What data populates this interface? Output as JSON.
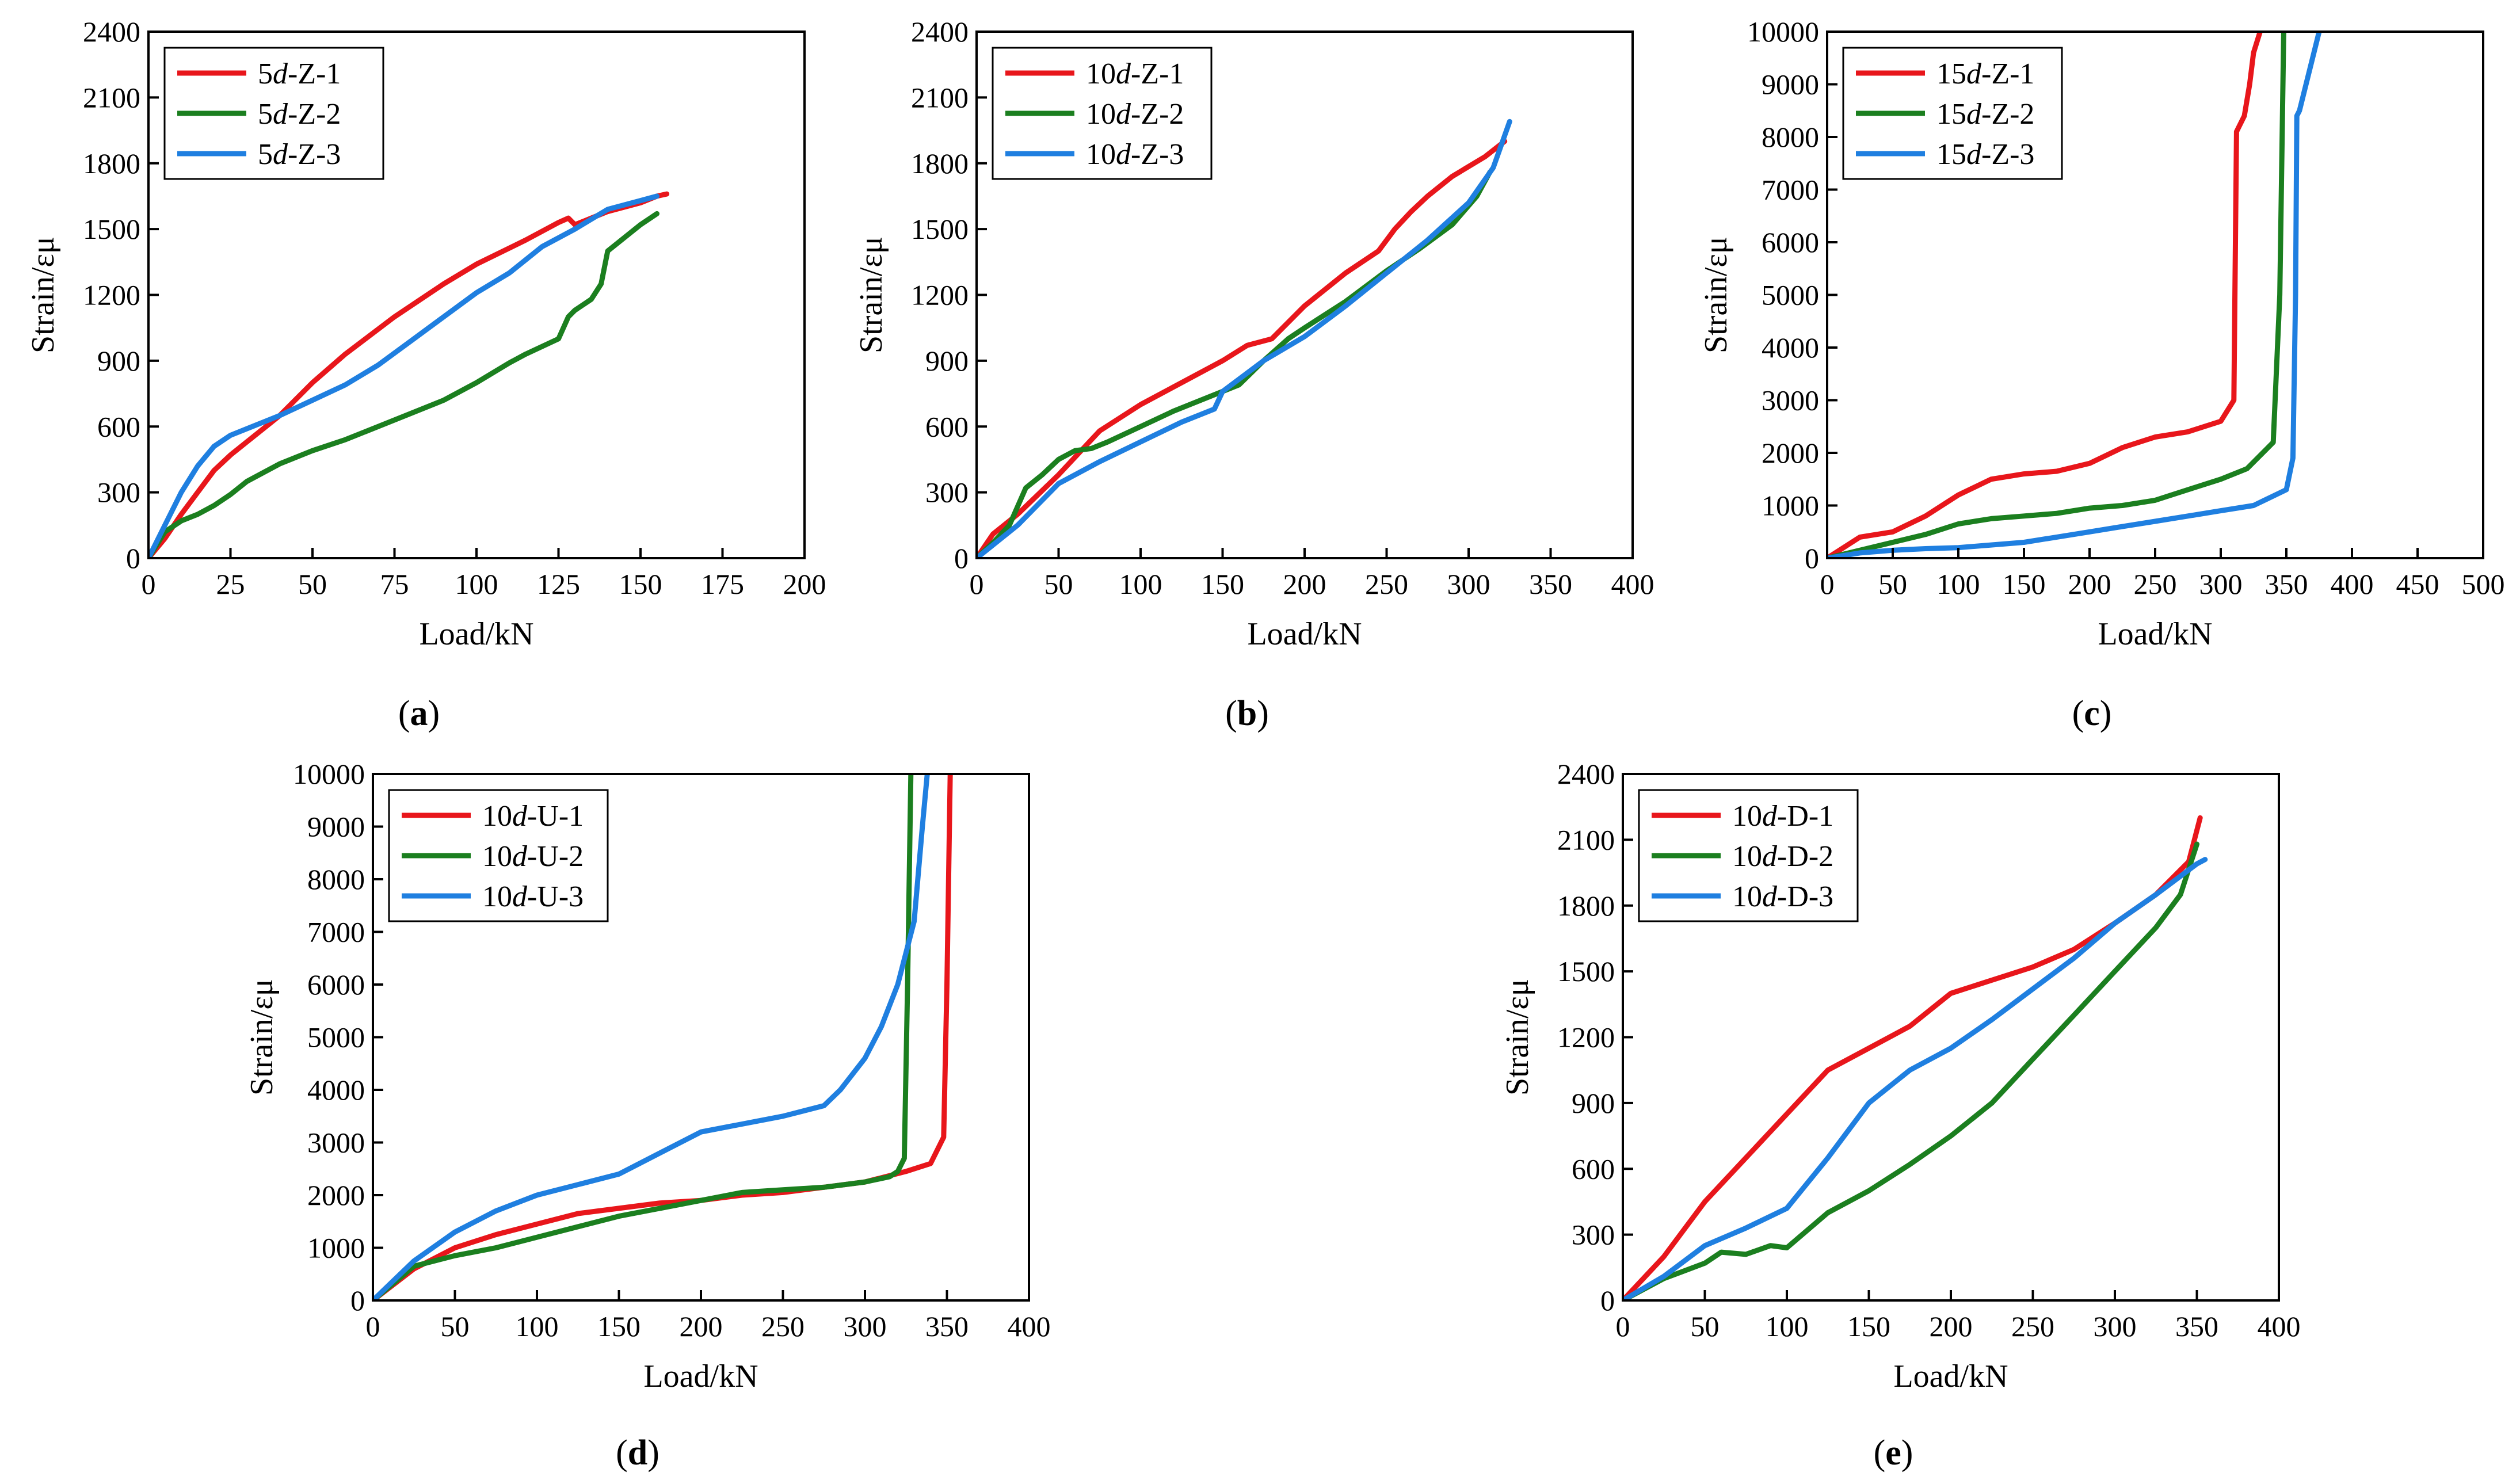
{
  "figure": {
    "panels": [
      "a",
      "b",
      "c",
      "d",
      "e"
    ]
  },
  "chart_data": [
    {
      "id": "a",
      "type": "line",
      "sublabel": "a",
      "xlabel": "Load/kN",
      "ylabel": "Strain/εμ",
      "xlim": [
        0,
        200
      ],
      "ylim": [
        0,
        2400
      ],
      "xticks": [
        0,
        25,
        50,
        75,
        100,
        125,
        150,
        175,
        200
      ],
      "yticks": [
        0,
        300,
        600,
        900,
        1200,
        1500,
        1800,
        2100,
        2400
      ],
      "legend_position": "top-left",
      "series": [
        {
          "name": "5d-Z-1",
          "prefix": "5",
          "ital": "d",
          "suffix": "-Z-1",
          "color": "#e8161b",
          "x": [
            0,
            5,
            10,
            15,
            20,
            25,
            30,
            40,
            50,
            60,
            75,
            90,
            100,
            115,
            125,
            128,
            130,
            135,
            140,
            145,
            150,
            155,
            158
          ],
          "y": [
            0,
            90,
            200,
            300,
            400,
            470,
            530,
            650,
            800,
            930,
            1100,
            1250,
            1340,
            1450,
            1530,
            1550,
            1520,
            1550,
            1580,
            1600,
            1620,
            1650,
            1660
          ]
        },
        {
          "name": "5d-Z-2",
          "prefix": "5",
          "ital": "d",
          "suffix": "-Z-2",
          "color": "#1b7f1f",
          "x": [
            0,
            5,
            10,
            15,
            20,
            25,
            30,
            40,
            50,
            60,
            70,
            80,
            90,
            100,
            110,
            115,
            125,
            128,
            130,
            135,
            138,
            140,
            145,
            150,
            155
          ],
          "y": [
            0,
            120,
            170,
            200,
            240,
            290,
            350,
            430,
            490,
            540,
            600,
            660,
            720,
            800,
            890,
            930,
            1000,
            1100,
            1130,
            1180,
            1250,
            1400,
            1460,
            1520,
            1570
          ]
        },
        {
          "name": "5d-Z-3",
          "prefix": "5",
          "ital": "d",
          "suffix": "-Z-3",
          "color": "#1f7fe0",
          "x": [
            0,
            5,
            10,
            15,
            20,
            25,
            30,
            40,
            50,
            60,
            70,
            80,
            90,
            100,
            110,
            120,
            130,
            140,
            150,
            155
          ],
          "y": [
            0,
            150,
            300,
            420,
            510,
            560,
            590,
            650,
            720,
            790,
            880,
            990,
            1100,
            1210,
            1300,
            1420,
            1500,
            1590,
            1630,
            1650
          ]
        }
      ]
    },
    {
      "id": "b",
      "type": "line",
      "sublabel": "b",
      "xlabel": "Load/kN",
      "ylabel": "Strain/εμ",
      "xlim": [
        0,
        400
      ],
      "ylim": [
        0,
        2400
      ],
      "xticks": [
        0,
        50,
        100,
        150,
        200,
        250,
        300,
        350,
        400
      ],
      "yticks": [
        0,
        300,
        600,
        900,
        1200,
        1500,
        1800,
        2100,
        2400
      ],
      "legend_position": "top-left",
      "series": [
        {
          "name": "10d-Z-1",
          "prefix": "10",
          "ital": "d",
          "suffix": "-Z-1",
          "color": "#e8161b",
          "x": [
            0,
            10,
            25,
            50,
            75,
            100,
            125,
            150,
            165,
            180,
            200,
            225,
            245,
            255,
            265,
            275,
            290,
            310,
            322
          ],
          "y": [
            0,
            110,
            200,
            380,
            580,
            700,
            800,
            900,
            970,
            1000,
            1150,
            1300,
            1400,
            1500,
            1580,
            1650,
            1740,
            1830,
            1900
          ]
        },
        {
          "name": "10d-Z-2",
          "prefix": "10",
          "ital": "d",
          "suffix": "-Z-2",
          "color": "#1b7f1f",
          "x": [
            0,
            10,
            20,
            30,
            40,
            50,
            60,
            70,
            80,
            100,
            120,
            140,
            160,
            175,
            190,
            200,
            225,
            250,
            270,
            290,
            305,
            313
          ],
          "y": [
            0,
            70,
            150,
            320,
            380,
            450,
            490,
            500,
            530,
            600,
            670,
            730,
            790,
            900,
            1000,
            1050,
            1170,
            1310,
            1410,
            1520,
            1650,
            1760
          ]
        },
        {
          "name": "10d-Z-3",
          "prefix": "10",
          "ital": "d",
          "suffix": "-Z-3",
          "color": "#1f7fe0",
          "x": [
            0,
            10,
            25,
            50,
            75,
            100,
            125,
            145,
            150,
            175,
            200,
            225,
            250,
            275,
            300,
            315,
            325
          ],
          "y": [
            0,
            60,
            150,
            340,
            440,
            530,
            620,
            680,
            760,
            900,
            1010,
            1150,
            1300,
            1450,
            1620,
            1780,
            1990
          ]
        }
      ]
    },
    {
      "id": "c",
      "type": "line",
      "sublabel": "c",
      "xlabel": "Load/kN",
      "ylabel": "Strain/εμ",
      "xlim": [
        0,
        500
      ],
      "ylim": [
        0,
        10000
      ],
      "xticks": [
        0,
        50,
        100,
        150,
        200,
        250,
        300,
        350,
        400,
        450,
        500
      ],
      "yticks": [
        0,
        1000,
        2000,
        3000,
        4000,
        5000,
        6000,
        7000,
        8000,
        9000,
        10000
      ],
      "legend_position": "top-left",
      "series": [
        {
          "name": "15d-Z-1",
          "prefix": "15",
          "ital": "d",
          "suffix": "-Z-1",
          "color": "#e8161b",
          "x": [
            0,
            25,
            50,
            75,
            100,
            125,
            150,
            175,
            200,
            225,
            250,
            275,
            300,
            310,
            312,
            318,
            322,
            325,
            330
          ],
          "y": [
            0,
            400,
            500,
            800,
            1200,
            1500,
            1600,
            1650,
            1800,
            2100,
            2300,
            2400,
            2600,
            3000,
            8100,
            8400,
            9000,
            9600,
            10000
          ]
        },
        {
          "name": "15d-Z-2",
          "prefix": "15",
          "ital": "d",
          "suffix": "-Z-2",
          "color": "#1b7f1f",
          "x": [
            0,
            25,
            50,
            75,
            100,
            125,
            150,
            175,
            200,
            225,
            250,
            275,
            300,
            320,
            340,
            345,
            348
          ],
          "y": [
            0,
            150,
            300,
            450,
            650,
            750,
            800,
            850,
            950,
            1000,
            1100,
            1300,
            1500,
            1700,
            2200,
            5000,
            10000
          ]
        },
        {
          "name": "15d-Z-3",
          "prefix": "15",
          "ital": "d",
          "suffix": "-Z-3",
          "color": "#1f7fe0",
          "x": [
            0,
            25,
            50,
            75,
            100,
            125,
            150,
            175,
            200,
            225,
            250,
            275,
            300,
            325,
            350,
            355,
            357,
            358,
            360,
            365,
            370,
            375
          ],
          "y": [
            0,
            100,
            150,
            180,
            200,
            250,
            300,
            400,
            500,
            600,
            700,
            800,
            900,
            1000,
            1300,
            1900,
            5000,
            8400,
            8500,
            9000,
            9500,
            10000
          ]
        }
      ]
    },
    {
      "id": "d",
      "type": "line",
      "sublabel": "d",
      "xlabel": "Load/kN",
      "ylabel": "Strain/εμ",
      "xlim": [
        0,
        400
      ],
      "ylim": [
        0,
        10000
      ],
      "xticks": [
        0,
        50,
        100,
        150,
        200,
        250,
        300,
        350,
        400
      ],
      "yticks": [
        0,
        1000,
        2000,
        3000,
        4000,
        5000,
        6000,
        7000,
        8000,
        9000,
        10000
      ],
      "legend_position": "top-left",
      "series": [
        {
          "name": "10d-U-1",
          "prefix": "10",
          "ital": "d",
          "suffix": "-U-1",
          "color": "#e8161b",
          "x": [
            0,
            25,
            50,
            75,
            100,
            125,
            150,
            175,
            200,
            225,
            250,
            275,
            300,
            325,
            340,
            348,
            350,
            352
          ],
          "y": [
            0,
            600,
            1000,
            1250,
            1450,
            1650,
            1750,
            1850,
            1900,
            2000,
            2050,
            2150,
            2250,
            2450,
            2600,
            3100,
            6000,
            10000
          ]
        },
        {
          "name": "10d-U-2",
          "prefix": "10",
          "ital": "d",
          "suffix": "-U-2",
          "color": "#1b7f1f",
          "x": [
            0,
            25,
            50,
            75,
            100,
            125,
            150,
            175,
            200,
            225,
            250,
            275,
            300,
            315,
            320,
            324,
            326,
            328
          ],
          "y": [
            0,
            650,
            850,
            1000,
            1200,
            1400,
            1600,
            1750,
            1900,
            2050,
            2100,
            2150,
            2250,
            2350,
            2450,
            2700,
            6000,
            10000
          ]
        },
        {
          "name": "10d-U-3",
          "prefix": "10",
          "ital": "d",
          "suffix": "-U-3",
          "color": "#1f7fe0",
          "x": [
            0,
            25,
            50,
            75,
            100,
            125,
            150,
            175,
            200,
            225,
            250,
            275,
            285,
            300,
            310,
            320,
            330,
            335,
            338
          ],
          "y": [
            0,
            750,
            1300,
            1700,
            2000,
            2200,
            2400,
            2800,
            3200,
            3350,
            3500,
            3700,
            4000,
            4600,
            5200,
            6000,
            7200,
            9000,
            10000
          ]
        }
      ]
    },
    {
      "id": "e",
      "type": "line",
      "sublabel": "e",
      "xlabel": "Load/kN",
      "ylabel": "Strain/εμ",
      "xlim": [
        0,
        400
      ],
      "ylim": [
        0,
        2400
      ],
      "xticks": [
        0,
        50,
        100,
        150,
        200,
        250,
        300,
        350,
        400
      ],
      "yticks": [
        0,
        300,
        600,
        900,
        1200,
        1500,
        1800,
        2100,
        2400
      ],
      "legend_position": "top-left",
      "series": [
        {
          "name": "10d-D-1",
          "prefix": "10",
          "ital": "d",
          "suffix": "-D-1",
          "color": "#e8161b",
          "x": [
            0,
            25,
            50,
            75,
            100,
            125,
            150,
            175,
            200,
            225,
            250,
            275,
            300,
            325,
            345,
            352
          ],
          "y": [
            0,
            200,
            450,
            650,
            850,
            1050,
            1150,
            1250,
            1400,
            1460,
            1520,
            1600,
            1720,
            1850,
            2000,
            2200
          ]
        },
        {
          "name": "10d-D-2",
          "prefix": "10",
          "ital": "d",
          "suffix": "-D-2",
          "color": "#1b7f1f",
          "x": [
            0,
            25,
            50,
            60,
            75,
            90,
            100,
            125,
            150,
            175,
            200,
            225,
            250,
            275,
            300,
            325,
            340,
            350
          ],
          "y": [
            0,
            100,
            170,
            220,
            210,
            250,
            240,
            400,
            500,
            620,
            750,
            900,
            1100,
            1300,
            1500,
            1700,
            1850,
            2080
          ]
        },
        {
          "name": "10d-D-3",
          "prefix": "10",
          "ital": "d",
          "suffix": "-D-3",
          "color": "#1f7fe0",
          "x": [
            0,
            25,
            50,
            75,
            100,
            125,
            150,
            175,
            200,
            225,
            250,
            275,
            300,
            325,
            350,
            355
          ],
          "y": [
            0,
            110,
            250,
            330,
            420,
            650,
            900,
            1050,
            1150,
            1280,
            1420,
            1560,
            1720,
            1850,
            1990,
            2010
          ]
        }
      ]
    }
  ]
}
